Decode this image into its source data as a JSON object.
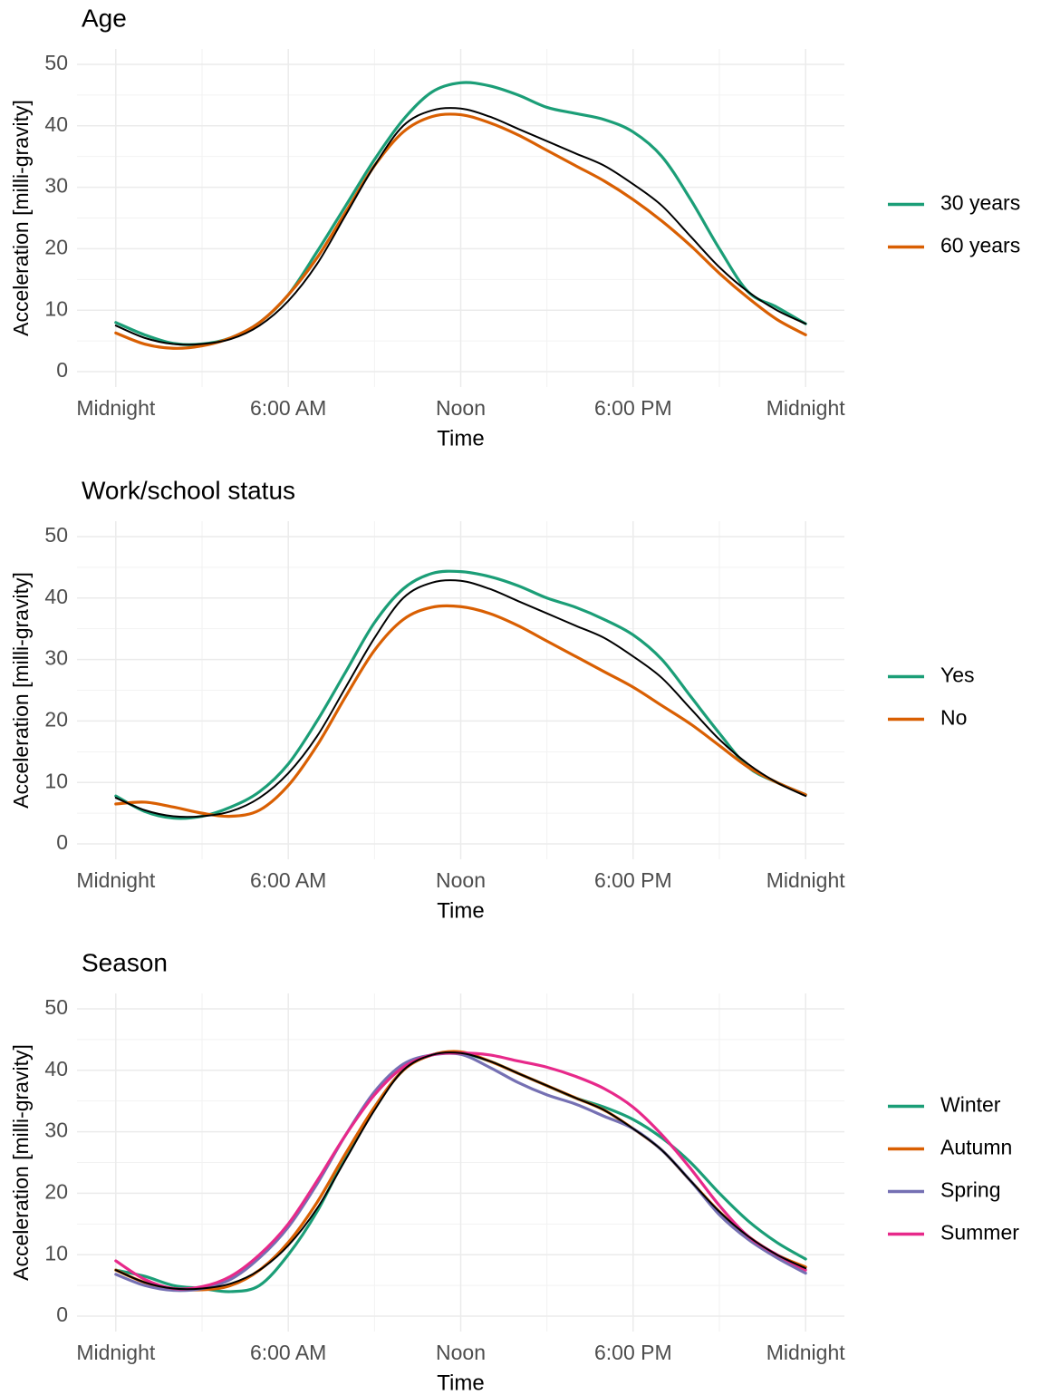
{
  "chart_data": [
    {
      "type": "line",
      "title": "Age",
      "xlabel": "Time",
      "ylabel": "Acceleration [milli-gravity]",
      "x": [
        0,
        1,
        2,
        3,
        4,
        5,
        6,
        7,
        8,
        9,
        10,
        11,
        12,
        13,
        14,
        15,
        16,
        17,
        18,
        19,
        20,
        21,
        22,
        23,
        24
      ],
      "xlim": [
        -1.35,
        25.35
      ],
      "xticks": [
        {
          "value": 0,
          "label": "Midnight"
        },
        {
          "value": 6,
          "label": "6:00 AM"
        },
        {
          "value": 12,
          "label": "Noon"
        },
        {
          "value": 18,
          "label": "6:00 PM"
        },
        {
          "value": 24,
          "label": "Midnight"
        }
      ],
      "ylim": [
        -2.5,
        52.5
      ],
      "yticks": [
        0,
        10,
        20,
        30,
        40,
        50
      ],
      "grid": true,
      "series": [
        {
          "name": "30 years",
          "color": "#1b9e77",
          "values": [
            8,
            6,
            4.6,
            4.5,
            5.5,
            8,
            12.5,
            19.5,
            27,
            34.5,
            41,
            45.5,
            47,
            46.5,
            45,
            43,
            42,
            41,
            39,
            35,
            28,
            20,
            13,
            10.5,
            7.8
          ]
        },
        {
          "name": "60 years",
          "color": "#d95f02",
          "values": [
            6.3,
            4.5,
            3.8,
            4.2,
            5.5,
            8,
            12.5,
            18.5,
            26,
            33.5,
            39,
            41.5,
            41.8,
            40.5,
            38.5,
            36,
            33.5,
            31,
            28,
            24.5,
            20.5,
            16,
            12,
            8.5,
            6
          ]
        },
        {
          "color": "#000000",
          "values": [
            7.5,
            5.5,
            4.5,
            4.5,
            5.3,
            7.5,
            11.5,
            17.5,
            25.5,
            33.5,
            40,
            42.5,
            42.8,
            41.5,
            39.5,
            37.5,
            35.5,
            33.5,
            30.5,
            27,
            22,
            17,
            13,
            10,
            7.8
          ]
        }
      ]
    },
    {
      "type": "line",
      "title": "Work/school status",
      "xlabel": "Time",
      "ylabel": "Acceleration [milli-gravity]",
      "x": [
        0,
        1,
        2,
        3,
        4,
        5,
        6,
        7,
        8,
        9,
        10,
        11,
        12,
        13,
        14,
        15,
        16,
        17,
        18,
        19,
        20,
        21,
        22,
        23,
        24
      ],
      "xlim": [
        -1.35,
        25.35
      ],
      "xticks": [
        {
          "value": 0,
          "label": "Midnight"
        },
        {
          "value": 6,
          "label": "6:00 AM"
        },
        {
          "value": 12,
          "label": "Noon"
        },
        {
          "value": 18,
          "label": "6:00 PM"
        },
        {
          "value": 24,
          "label": "Midnight"
        }
      ],
      "ylim": [
        -2.5,
        52.5
      ],
      "yticks": [
        0,
        10,
        20,
        30,
        40,
        50
      ],
      "grid": true,
      "series": [
        {
          "name": "Yes",
          "color": "#1b9e77",
          "values": [
            7.8,
            5.3,
            4.2,
            4.5,
            6,
            8.5,
            13,
            20,
            28,
            36,
            41.5,
            44,
            44.3,
            43.5,
            42,
            40,
            38.5,
            36.5,
            34,
            30,
            24,
            18,
            12.5,
            10,
            8
          ]
        },
        {
          "name": "No",
          "color": "#d95f02",
          "values": [
            6.5,
            6.8,
            6,
            5,
            4.5,
            5.5,
            9.5,
            16,
            24,
            31.5,
            36.5,
            38.5,
            38.6,
            37.5,
            35.5,
            33,
            30.5,
            28,
            25.5,
            22.5,
            19.5,
            16,
            12.5,
            10,
            8
          ]
        },
        {
          "color": "#000000",
          "values": [
            7.5,
            5.5,
            4.5,
            4.5,
            5.3,
            7.5,
            11.5,
            17.5,
            25.5,
            33.5,
            40,
            42.5,
            42.8,
            41.5,
            39.5,
            37.5,
            35.5,
            33.5,
            30.5,
            27,
            22,
            17,
            13,
            10,
            7.8
          ]
        }
      ]
    },
    {
      "type": "line",
      "title": "Season",
      "xlabel": "Time",
      "ylabel": "Acceleration [milli-gravity]",
      "x": [
        0,
        1,
        2,
        3,
        4,
        5,
        6,
        7,
        8,
        9,
        10,
        11,
        12,
        13,
        14,
        15,
        16,
        17,
        18,
        19,
        20,
        21,
        22,
        23,
        24
      ],
      "xlim": [
        -1.35,
        25.35
      ],
      "xticks": [
        {
          "value": 0,
          "label": "Midnight"
        },
        {
          "value": 6,
          "label": "6:00 AM"
        },
        {
          "value": 12,
          "label": "Noon"
        },
        {
          "value": 18,
          "label": "6:00 PM"
        },
        {
          "value": 24,
          "label": "Midnight"
        }
      ],
      "ylim": [
        -2.5,
        52.5
      ],
      "yticks": [
        0,
        10,
        20,
        30,
        40,
        50
      ],
      "grid": true,
      "series": [
        {
          "name": "Winter",
          "color": "#1b9e77",
          "values": [
            7.5,
            6.5,
            5,
            4.5,
            4,
            5,
            10,
            17,
            26,
            34,
            40,
            42.5,
            42.8,
            41.5,
            39.5,
            37.5,
            35.5,
            34,
            32,
            29,
            25,
            20,
            15.5,
            12,
            9.3
          ]
        },
        {
          "name": "Autumn",
          "color": "#d95f02",
          "values": [
            7.5,
            5.5,
            4.5,
            4.3,
            5,
            7.5,
            12,
            18.5,
            26.5,
            34,
            40,
            42.5,
            43,
            41.5,
            39.5,
            37.5,
            35.5,
            33.5,
            30.5,
            27,
            22,
            17,
            13,
            10,
            8
          ]
        },
        {
          "name": "Spring",
          "color": "#7570b3",
          "values": [
            6.8,
            5,
            4.2,
            4.5,
            6,
            9.5,
            14.5,
            21.5,
            29.5,
            36.5,
            41,
            42.5,
            42.6,
            40.5,
            38,
            36,
            34.5,
            32.5,
            30.5,
            27,
            22,
            16.5,
            12.5,
            9.5,
            7
          ]
        },
        {
          "name": "Summer",
          "color": "#e7298a",
          "values": [
            9,
            6,
            4.5,
            4.8,
            6.5,
            10,
            15,
            22,
            29.5,
            36,
            40.5,
            42.5,
            42.8,
            42.5,
            41.5,
            40.5,
            39,
            37,
            34,
            29.5,
            24,
            18,
            13,
            10,
            7.5
          ]
        },
        {
          "color": "#000000",
          "values": [
            7.5,
            5.5,
            4.5,
            4.5,
            5.3,
            7.5,
            11.5,
            17.5,
            25.5,
            33.5,
            40,
            42.5,
            42.8,
            41.5,
            39.5,
            37.5,
            35.5,
            33.5,
            30.5,
            27,
            22,
            17,
            13,
            10,
            7.8
          ]
        }
      ]
    }
  ]
}
